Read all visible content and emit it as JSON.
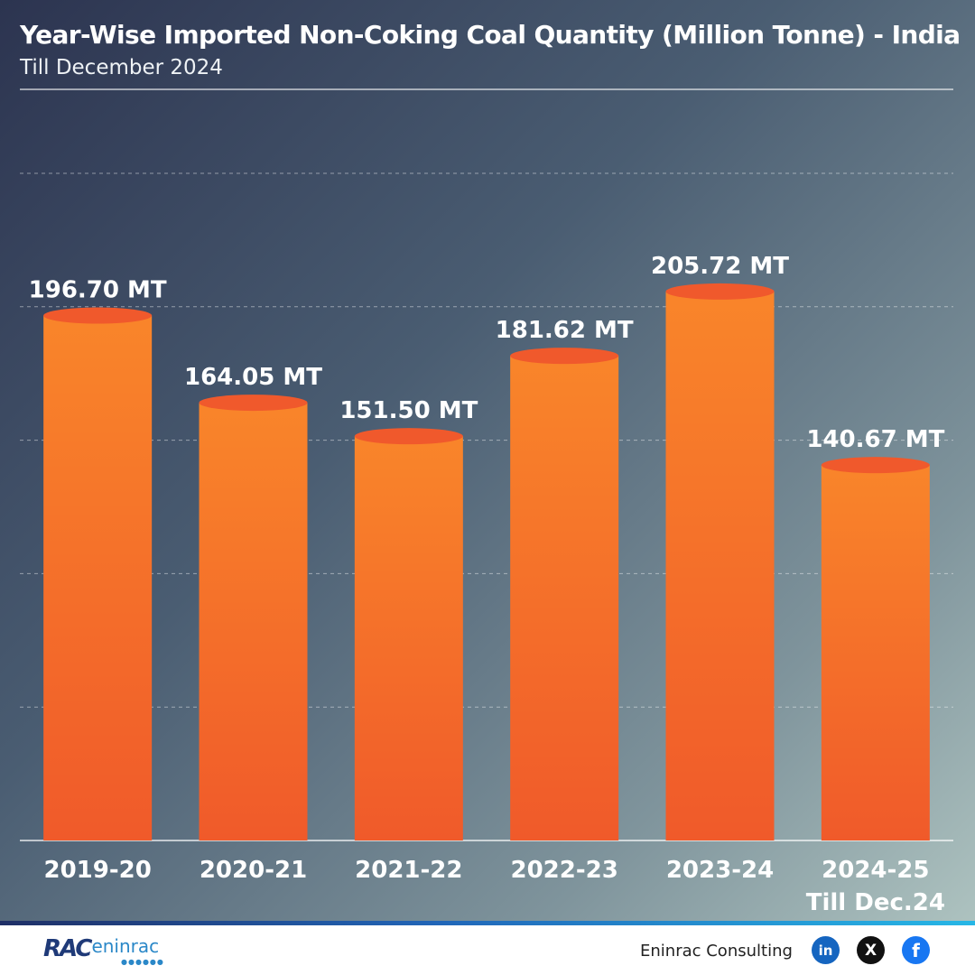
{
  "header": {
    "title": "Year-Wise Imported Non-Coking Coal Quantity (Million Tonne) - India",
    "subtitle": "Till December 2024"
  },
  "chart_data": {
    "type": "bar",
    "title": "Year-Wise Imported Non-Coking Coal Quantity (Million Tonne) - India",
    "subtitle": "Till December 2024",
    "categories": [
      [
        "2019-20"
      ],
      [
        "2020-21"
      ],
      [
        "2021-22"
      ],
      [
        "2022-23"
      ],
      [
        "2023-24"
      ],
      [
        "2024-25",
        "Till Dec.24"
      ]
    ],
    "values": [
      196.7,
      164.05,
      151.5,
      181.62,
      205.72,
      140.67
    ],
    "value_labels": [
      "196.70 MT",
      "164.05 MT",
      "151.50 MT",
      "181.62 MT",
      "205.72 MT",
      "140.67 MT"
    ],
    "xlabel": "",
    "ylabel": "",
    "ylim": [
      0,
      250
    ],
    "grid": true,
    "legend": "none",
    "bar_color": "#f9852a",
    "bar_color_bottom": "#f05a2a",
    "bar_top_color": "#f0592c"
  },
  "footer": {
    "logo_mark": "RAC",
    "logo_word": "eninrac",
    "brand": "Eninrac Consulting",
    "icons": [
      "linkedin-icon",
      "x-icon",
      "facebook-icon"
    ],
    "icon_glyphs": [
      "in",
      "X",
      "f"
    ]
  }
}
